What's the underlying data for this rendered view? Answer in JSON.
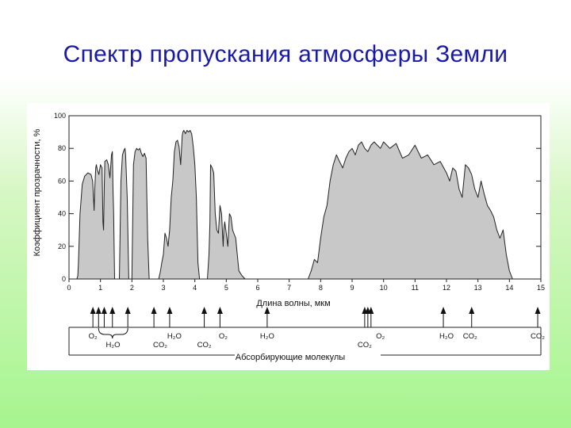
{
  "slide": {
    "title": "Спектр пропускания атмосферы Земли"
  },
  "chart_data": {
    "type": "area",
    "title": "",
    "xlabel": "Длина волны, мкм",
    "ylabel": "Коэффициент прозрачности, %",
    "xlim": [
      0,
      15
    ],
    "ylim": [
      0,
      100
    ],
    "xticks": [
      0,
      1,
      2,
      3,
      4,
      5,
      6,
      7,
      8,
      9,
      10,
      11,
      12,
      13,
      14,
      15
    ],
    "yticks": [
      0,
      20,
      40,
      60,
      80,
      100
    ],
    "grid": false,
    "fill_color": "#c8c8c8",
    "series": [
      {
        "x": [
          0.25,
          0.28,
          0.3,
          0.35,
          0.42,
          0.5,
          0.6,
          0.7,
          0.75,
          0.8,
          0.82,
          0.85,
          0.87,
          0.9,
          0.95,
          1.0,
          1.05,
          1.08,
          1.1,
          1.12,
          1.14,
          1.2,
          1.25,
          1.3,
          1.35,
          1.38,
          1.4,
          1.42,
          1.45,
          1.5,
          1.55,
          1.6,
          1.65,
          1.7,
          1.75,
          1.78,
          1.8,
          1.85,
          1.9,
          1.95,
          2.0,
          2.05,
          2.1,
          2.15,
          2.2,
          2.25,
          2.3,
          2.35,
          2.4,
          2.45,
          2.5,
          2.55,
          2.6,
          2.7,
          2.8,
          2.85,
          2.9,
          2.95,
          3.0,
          3.05,
          3.1,
          3.15,
          3.2,
          3.25,
          3.3,
          3.35,
          3.4,
          3.45,
          3.5,
          3.55,
          3.6,
          3.62,
          3.65,
          3.7,
          3.75,
          3.8,
          3.85,
          3.9,
          3.95,
          4.0,
          4.05,
          4.1,
          4.15,
          4.2,
          4.25,
          4.3,
          4.35,
          4.4,
          4.45,
          4.48,
          4.5,
          4.55,
          4.6,
          4.65,
          4.7,
          4.75,
          4.8,
          4.85,
          4.9,
          4.92,
          4.95,
          5.0,
          5.05,
          5.1,
          5.15,
          5.2,
          5.3,
          5.4,
          5.5,
          5.6,
          6.0,
          7.0,
          7.5,
          7.6,
          7.7,
          7.8,
          7.9,
          8.0,
          8.1,
          8.2,
          8.3,
          8.4,
          8.5,
          8.6,
          8.7,
          8.8,
          8.9,
          9.0,
          9.1,
          9.2,
          9.3,
          9.4,
          9.5,
          9.6,
          9.7,
          9.8,
          9.9,
          10.0,
          10.2,
          10.4,
          10.6,
          10.8,
          11.0,
          11.2,
          11.4,
          11.6,
          11.8,
          12.0,
          12.1,
          12.2,
          12.3,
          12.4,
          12.5,
          12.6,
          12.7,
          12.8,
          12.9,
          13.0,
          13.1,
          13.2,
          13.3,
          13.4,
          13.5,
          13.6,
          13.7,
          13.8,
          13.9,
          14.0,
          14.1
        ],
        "y": [
          0,
          2,
          10,
          40,
          58,
          63,
          65,
          64,
          60,
          42,
          55,
          68,
          70,
          67,
          64,
          70,
          68,
          35,
          30,
          55,
          72,
          73,
          70,
          62,
          76,
          78,
          55,
          40,
          0,
          0,
          0,
          0,
          60,
          76,
          79,
          80,
          76,
          50,
          0,
          0,
          0,
          70,
          78,
          80,
          79,
          80,
          77,
          75,
          77,
          74,
          25,
          0,
          0,
          0,
          0,
          0,
          4,
          10,
          15,
          28,
          25,
          20,
          30,
          50,
          60,
          78,
          84,
          85,
          81,
          70,
          88,
          90,
          91,
          89,
          91,
          90,
          91,
          89,
          81,
          70,
          50,
          10,
          0,
          0,
          0,
          0,
          0,
          0,
          15,
          35,
          70,
          68,
          65,
          40,
          30,
          28,
          45,
          40,
          20,
          30,
          35,
          28,
          20,
          40,
          38,
          30,
          25,
          5,
          2,
          0,
          0,
          0,
          0,
          0,
          5,
          12,
          10,
          25,
          38,
          45,
          60,
          70,
          76,
          72,
          68,
          74,
          78,
          80,
          76,
          82,
          84,
          80,
          78,
          82,
          84,
          82,
          80,
          84,
          80,
          83,
          74,
          76,
          82,
          74,
          76,
          70,
          72,
          65,
          60,
          68,
          66,
          55,
          50,
          70,
          68,
          64,
          55,
          50,
          60,
          52,
          45,
          42,
          38,
          30,
          25,
          30,
          15,
          5,
          0
        ]
      }
    ]
  },
  "absorption": {
    "molecules": [
      {
        "x": 0.76,
        "label": "O₂"
      },
      {
        "x": 1.4,
        "label": "H₂O"
      },
      {
        "x": 2.9,
        "label": "CO₂"
      },
      {
        "x": 3.35,
        "label": "H₂O"
      },
      {
        "x": 4.3,
        "label": "CO₂"
      },
      {
        "x": 4.9,
        "label": "O₂"
      },
      {
        "x": 6.3,
        "label": "H₂O"
      },
      {
        "x": 9.4,
        "label": "CO₂"
      },
      {
        "x": 9.9,
        "label": "O₂"
      },
      {
        "x": 12.0,
        "label": "H₂O"
      },
      {
        "x": 12.75,
        "label": "CO₂"
      },
      {
        "x": 14.9,
        "label": "CO₂"
      }
    ],
    "arrows_x": [
      0.76,
      0.94,
      1.12,
      1.38,
      1.87,
      2.7,
      3.2,
      4.3,
      4.8,
      6.3,
      9.4,
      9.5,
      9.6,
      11.9,
      12.8,
      14.9
    ],
    "caption": "Абсорбирующие молекулы"
  }
}
